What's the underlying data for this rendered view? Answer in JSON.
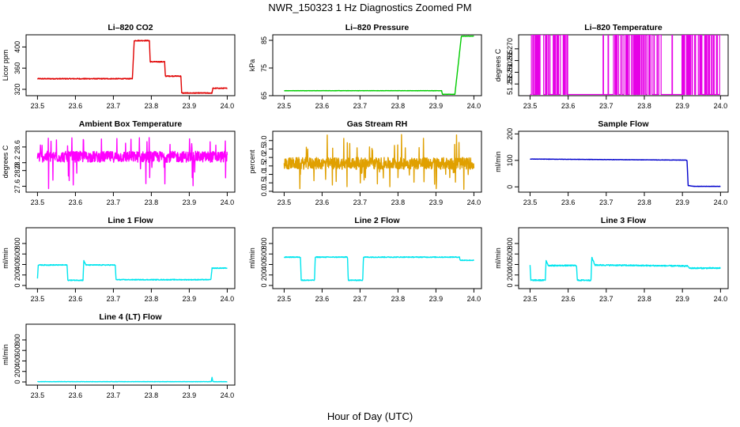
{
  "figure": {
    "title": "NWR_150323  1 Hz Diagnostics Zoomed PM",
    "xlabel": "Hour of Day (UTC)"
  },
  "chart_data": [
    {
      "type": "line",
      "title": "Li–820 CO2",
      "ylabel": "Licor ppm",
      "color": "#e00000",
      "xlim": [
        23.47,
        24.02
      ],
      "ylim": [
        308,
        423
      ],
      "xticks": [
        "23.5",
        "23.6",
        "23.7",
        "23.8",
        "23.9",
        "24.0"
      ],
      "yticks": [
        "320",
        "360",
        "400"
      ],
      "noise": 0.8,
      "series": [
        {
          "x": 23.5,
          "y": 340
        },
        {
          "x": 23.75,
          "y": 340
        },
        {
          "x": 23.755,
          "y": 412
        },
        {
          "x": 23.795,
          "y": 412
        },
        {
          "x": 23.797,
          "y": 372
        },
        {
          "x": 23.835,
          "y": 372
        },
        {
          "x": 23.837,
          "y": 345
        },
        {
          "x": 23.878,
          "y": 345
        },
        {
          "x": 23.88,
          "y": 313
        },
        {
          "x": 23.96,
          "y": 313
        },
        {
          "x": 23.962,
          "y": 322
        },
        {
          "x": 24.0,
          "y": 322
        }
      ]
    },
    {
      "type": "line",
      "title": "Li–820 Pressure",
      "ylabel": "kPa",
      "color": "#00cc00",
      "xlim": [
        23.47,
        24.02
      ],
      "ylim": [
        65,
        87
      ],
      "xticks": [
        "23.5",
        "23.6",
        "23.7",
        "23.8",
        "23.9",
        "24.0"
      ],
      "yticks": [
        "65",
        "75",
        "85"
      ],
      "noise": 0.05,
      "series": [
        {
          "x": 23.5,
          "y": 66.8
        },
        {
          "x": 23.915,
          "y": 66.8
        },
        {
          "x": 23.917,
          "y": 65.5
        },
        {
          "x": 23.95,
          "y": 65.5
        },
        {
          "x": 23.967,
          "y": 86.5
        },
        {
          "x": 24.0,
          "y": 86.5
        }
      ]
    },
    {
      "type": "line",
      "title": "Li–820 Temperature",
      "ylabel": "degrees C",
      "color": "#e600e6",
      "xlim": [
        23.47,
        24.02
      ],
      "ylim": [
        51.25,
        51.276
      ],
      "xticks": [
        "23.5",
        "23.6",
        "23.7",
        "23.8",
        "23.9",
        "24.0"
      ],
      "yticks": [
        "51.255",
        "51.260",
        "51.265",
        "51.270"
      ],
      "noise": 0,
      "toggle": {
        "low": 51.2505,
        "high": 51.276,
        "gaps": [
          [
            23.6,
            23.715
          ],
          [
            23.845,
            23.9
          ]
        ]
      }
    },
    {
      "type": "line",
      "title": "Ambient Box Temperature",
      "ylabel": "degrees C",
      "color": "#ff00ff",
      "xlim": [
        23.47,
        24.02
      ],
      "ylim": [
        27.45,
        29.0
      ],
      "xticks": [
        "23.5",
        "23.6",
        "23.7",
        "23.8",
        "23.9",
        "24.0"
      ],
      "yticks": [
        "27.6",
        "28.0",
        "28.2",
        "28.6"
      ],
      "ytick_values": [
        27.6,
        28.0,
        28.2,
        28.6
      ],
      "noise": 0.14,
      "spikes": {
        "min": 27.5,
        "mean": 28.35,
        "max": 28.85
      },
      "series": [
        {
          "x": 23.5,
          "y": 28.35
        },
        {
          "x": 24.0,
          "y": 28.35
        }
      ]
    },
    {
      "type": "line",
      "title": "Gas Stream RH",
      "ylabel": "percent",
      "color": "#e0a000",
      "xlim": [
        23.47,
        24.02
      ],
      "ylim": [
        -0.05,
        3.55
      ],
      "xticks": [
        "23.5",
        "23.6",
        "23.7",
        "23.8",
        "23.9",
        "24.0"
      ],
      "yticks": [
        "0.0",
        "0.5",
        "1.0",
        "1.5",
        "2.0",
        "2.5",
        "3.0"
      ],
      "noise": 0.35,
      "spikes": {
        "min": 0.0,
        "mean": 1.65,
        "max": 3.4
      },
      "series": [
        {
          "x": 23.5,
          "y": 1.65
        },
        {
          "x": 24.0,
          "y": 1.65
        }
      ]
    },
    {
      "type": "line",
      "title": "Sample Flow",
      "ylabel": "ml/min",
      "color": "#0000cc",
      "xlim": [
        23.47,
        24.02
      ],
      "ylim": [
        -20,
        210
      ],
      "xticks": [
        "23.5",
        "23.6",
        "23.7",
        "23.8",
        "23.9",
        "24.0"
      ],
      "yticks": [
        "0",
        "100",
        "200"
      ],
      "noise": 0.6,
      "series": [
        {
          "x": 23.5,
          "y": 105
        },
        {
          "x": 23.912,
          "y": 101
        },
        {
          "x": 23.915,
          "y": 5
        },
        {
          "x": 23.93,
          "y": 2
        },
        {
          "x": 24.0,
          "y": 2
        }
      ]
    },
    {
      "type": "line",
      "title": "Line 1 Flow",
      "ylabel": "ml/min",
      "color": "#00e5ee",
      "xlim": [
        23.47,
        24.02
      ],
      "ylim": [
        -60,
        1100
      ],
      "xticks": [
        "23.5",
        "23.6",
        "23.7",
        "23.8",
        "23.9",
        "24.0"
      ],
      "yticks": [
        "0",
        "200",
        "400",
        "600",
        "800"
      ],
      "noise": 8,
      "series": [
        {
          "x": 23.5,
          "y": 130
        },
        {
          "x": 23.502,
          "y": 390
        },
        {
          "x": 23.578,
          "y": 390
        },
        {
          "x": 23.58,
          "y": 100
        },
        {
          "x": 23.62,
          "y": 100
        },
        {
          "x": 23.622,
          "y": 470
        },
        {
          "x": 23.628,
          "y": 390
        },
        {
          "x": 23.705,
          "y": 390
        },
        {
          "x": 23.707,
          "y": 110
        },
        {
          "x": 23.957,
          "y": 110
        },
        {
          "x": 23.96,
          "y": 330
        },
        {
          "x": 24.0,
          "y": 330
        }
      ]
    },
    {
      "type": "line",
      "title": "Line 2 Flow",
      "ylabel": "ml/min",
      "color": "#00e5ee",
      "xlim": [
        23.47,
        24.02
      ],
      "ylim": [
        -60,
        1100
      ],
      "xticks": [
        "23.5",
        "23.6",
        "23.7",
        "23.8",
        "23.9",
        "24.0"
      ],
      "yticks": [
        "0",
        "200",
        "400",
        "600",
        "800"
      ],
      "noise": 8,
      "series": [
        {
          "x": 23.5,
          "y": 540
        },
        {
          "x": 23.543,
          "y": 540
        },
        {
          "x": 23.545,
          "y": 100
        },
        {
          "x": 23.58,
          "y": 100
        },
        {
          "x": 23.582,
          "y": 540
        },
        {
          "x": 23.667,
          "y": 540
        },
        {
          "x": 23.669,
          "y": 100
        },
        {
          "x": 23.707,
          "y": 100
        },
        {
          "x": 23.709,
          "y": 540
        },
        {
          "x": 23.962,
          "y": 540
        },
        {
          "x": 23.964,
          "y": 480
        },
        {
          "x": 24.0,
          "y": 480
        }
      ]
    },
    {
      "type": "line",
      "title": "Line 3 Flow",
      "ylabel": "ml/min",
      "color": "#00e5ee",
      "xlim": [
        23.47,
        24.02
      ],
      "ylim": [
        -60,
        1100
      ],
      "xticks": [
        "23.5",
        "23.6",
        "23.7",
        "23.8",
        "23.9",
        "24.0"
      ],
      "yticks": [
        "0",
        "200",
        "400",
        "600",
        "800"
      ],
      "noise": 12,
      "series": [
        {
          "x": 23.5,
          "y": 380
        },
        {
          "x": 23.502,
          "y": 100
        },
        {
          "x": 23.54,
          "y": 100
        },
        {
          "x": 23.542,
          "y": 480
        },
        {
          "x": 23.548,
          "y": 380
        },
        {
          "x": 23.622,
          "y": 380
        },
        {
          "x": 23.624,
          "y": 100
        },
        {
          "x": 23.66,
          "y": 100
        },
        {
          "x": 23.662,
          "y": 540
        },
        {
          "x": 23.67,
          "y": 390
        },
        {
          "x": 23.915,
          "y": 370
        },
        {
          "x": 23.917,
          "y": 330
        },
        {
          "x": 24.0,
          "y": 330
        }
      ]
    },
    {
      "type": "line",
      "title": "Line 4 (LT) Flow",
      "ylabel": "ml/min",
      "color": "#00e5ee",
      "xlim": [
        23.47,
        24.02
      ],
      "ylim": [
        -60,
        1100
      ],
      "xticks": [
        "23.5",
        "23.6",
        "23.7",
        "23.8",
        "23.9",
        "24.0"
      ],
      "yticks": [
        "0",
        "200",
        "400",
        "600",
        "800"
      ],
      "noise": 3,
      "series": [
        {
          "x": 23.5,
          "y": 5
        },
        {
          "x": 23.958,
          "y": 5
        },
        {
          "x": 23.96,
          "y": 90
        },
        {
          "x": 23.962,
          "y": 5
        },
        {
          "x": 24.0,
          "y": 5
        }
      ]
    }
  ]
}
